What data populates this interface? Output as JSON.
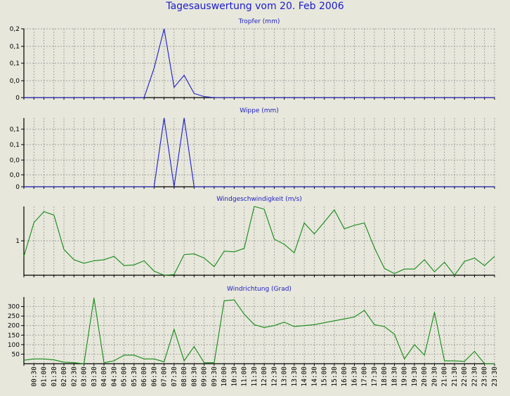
{
  "title": "Tagesauswertung vom 20. Feb 2006",
  "x_labels": [
    "00:30",
    "01:00",
    "01:30",
    "02:00",
    "02:30",
    "03:00",
    "03:30",
    "04:00",
    "04:30",
    "05:00",
    "05:30",
    "06:00",
    "06:30",
    "07:00",
    "07:30",
    "08:00",
    "08:30",
    "09:00",
    "09:30",
    "10:00",
    "10:30",
    "11:00",
    "11:30",
    "12:00",
    "12:30",
    "13:00",
    "13:30",
    "14:00",
    "14:30",
    "15:00",
    "15:30",
    "16:00",
    "16:30",
    "17:00",
    "17:30",
    "18:00",
    "18:30",
    "19:00",
    "19:30",
    "20:00",
    "20:30",
    "21:00",
    "21:30",
    "22:00",
    "22:30",
    "23:00",
    "23:30"
  ],
  "colors": {
    "background": "#e7e7dc",
    "grid": "#8a8a8a",
    "title": "#1b1bcf",
    "blue_series": "#1c1cd0",
    "green_series": "#138a13"
  },
  "chart_data": [
    {
      "type": "line",
      "title": "Tropfer (mm)",
      "ytick_labels": [
        "0,2",
        "0,1",
        "0,1",
        "0,0",
        "0"
      ],
      "ylim": [
        0,
        0.2
      ],
      "grid": true,
      "series": [
        {
          "color": "#1c1cd0",
          "values": [
            0,
            0,
            0,
            0,
            0,
            0,
            0,
            0,
            0,
            0,
            0,
            0,
            0,
            0.085,
            0.2,
            0.03,
            0.065,
            0.012,
            0.003,
            0,
            0,
            0,
            0,
            0,
            0,
            0,
            0,
            0,
            0,
            0,
            0,
            0,
            0,
            0,
            0,
            0,
            0,
            0,
            0,
            0,
            0,
            0,
            0,
            0,
            0,
            0,
            0,
            0
          ]
        }
      ]
    },
    {
      "type": "line",
      "title": "Wippe (mm)",
      "ytick_labels": [
        "0,1",
        "0,1",
        "0,0",
        "0,0",
        "0"
      ],
      "ylim": [
        0,
        0.2
      ],
      "grid": true,
      "series": [
        {
          "color": "#1c1cd0",
          "values": [
            0,
            0,
            0,
            0,
            0,
            0,
            0,
            0,
            0,
            0,
            0,
            0,
            0,
            0,
            0.2,
            0,
            0.2,
            0,
            0,
            0,
            0,
            0,
            0,
            0,
            0,
            0,
            0,
            0,
            0,
            0,
            0,
            0,
            0,
            0,
            0,
            0,
            0,
            0,
            0,
            0,
            0,
            0,
            0,
            0,
            0,
            0,
            0,
            0
          ]
        }
      ]
    },
    {
      "type": "line",
      "title": "Windgeschwindigkeit (m/s)",
      "ytick_labels": [
        "1"
      ],
      "ytick_values": [
        1
      ],
      "ylim": [
        0,
        2
      ],
      "grid": true,
      "series": [
        {
          "color": "#138a13",
          "values": [
            0.55,
            1.53,
            1.85,
            1.75,
            0.75,
            0.45,
            0.35,
            0.42,
            0.45,
            0.55,
            0.28,
            0.3,
            0.42,
            0.12,
            0,
            0.02,
            0.6,
            0.62,
            0.5,
            0.25,
            0.7,
            0.68,
            0.78,
            2.05,
            1.92,
            1.05,
            0.9,
            0.65,
            1.52,
            1.2,
            1.55,
            1.9,
            1.35,
            1.45,
            1.52,
            0.8,
            0.2,
            0.05,
            0.18,
            0.18,
            0.45,
            0.1,
            0.38,
            0,
            0.4,
            0.5,
            0.28,
            0.55
          ]
        }
      ]
    },
    {
      "type": "line",
      "title": "Windrichtung (Grad)",
      "ytick_labels": [
        "300",
        "250",
        "200",
        "150",
        "100",
        "50"
      ],
      "ytick_values": [
        300,
        250,
        200,
        150,
        100,
        50
      ],
      "ylim": [
        0,
        350
      ],
      "grid": true,
      "series": [
        {
          "color": "#138a13",
          "values": [
            18,
            25,
            25,
            20,
            8,
            5,
            0,
            345,
            5,
            15,
            45,
            45,
            25,
            25,
            10,
            180,
            15,
            90,
            5,
            5,
            330,
            335,
            260,
            205,
            190,
            200,
            218,
            195,
            200,
            205,
            215,
            225,
            235,
            245,
            280,
            205,
            195,
            155,
            25,
            100,
            45,
            270,
            15,
            15,
            12,
            65,
            0,
            0
          ]
        }
      ]
    }
  ]
}
